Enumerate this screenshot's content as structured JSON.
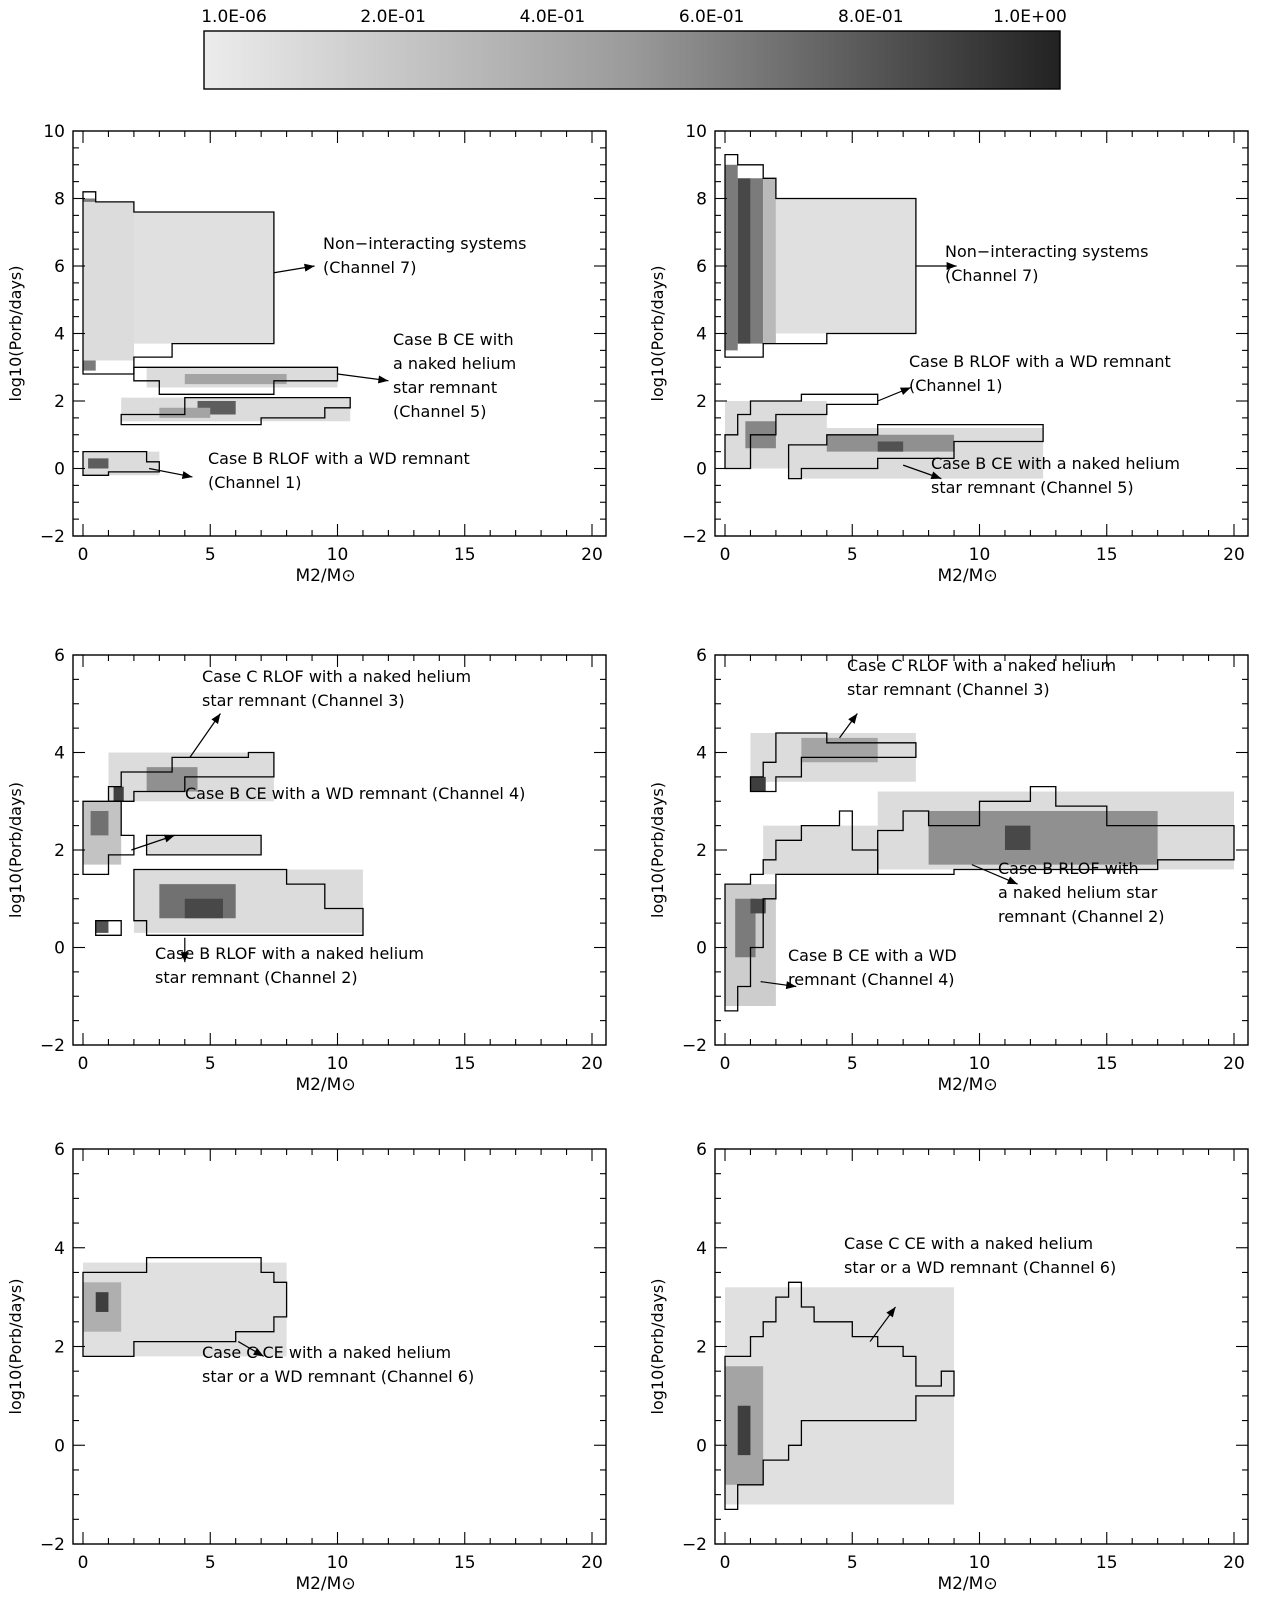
{
  "chart_data": {
    "colorbar": {
      "type": "heatmap-colorbar",
      "tick_labels": [
        "1.0E-06",
        "2.0E-01",
        "4.0E-01",
        "6.0E-01",
        "8.0E-01",
        "1.0E+00"
      ],
      "range": [
        1e-06,
        1.0
      ],
      "colormap": "greyscale: light (low) to dark (high)"
    },
    "panels": [
      {
        "type": "heatmap",
        "xlabel": "M2/M⊙",
        "ylabel": "log10(Porb/days)",
        "xlim": [
          0,
          20
        ],
        "ylim": [
          -2,
          10
        ],
        "xticks": [
          "0",
          "5",
          "10",
          "15",
          "20"
        ],
        "yticks": [
          "−2",
          "0",
          "2",
          "4",
          "6",
          "8",
          "10"
        ],
        "regions": [
          {
            "x": [
              0,
              2
            ],
            "y": [
              2.8,
              8.2
            ],
            "dense_column": [
              0,
              1.2
            ]
          },
          {
            "x": [
              2,
              7.5
            ],
            "y": [
              3.7,
              7.6
            ]
          },
          {
            "x": [
              2,
              10
            ],
            "y": [
              2.2,
              3.0
            ]
          },
          {
            "x": [
              1.5,
              10.5
            ],
            "y": [
              1.3,
              2.1
            ]
          },
          {
            "x": [
              0,
              3
            ],
            "y": [
              -0.2,
              0.6
            ]
          }
        ],
        "annotations": [
          {
            "lines": [
              "Non−interacting systems",
              "(Channel 7)"
            ]
          },
          {
            "lines": [
              "Case B CE with",
              "a naked helium",
              "star remnant",
              "(Channel 5)"
            ]
          },
          {
            "lines": [
              "Case B RLOF with a WD remnant",
              "(Channel 1)"
            ]
          }
        ]
      },
      {
        "type": "heatmap",
        "xlabel": "M2/M⊙",
        "ylabel": "log10(Porb/days)",
        "xlim": [
          0,
          20
        ],
        "ylim": [
          -2,
          10
        ],
        "xticks": [
          "0",
          "5",
          "10",
          "15",
          "20"
        ],
        "yticks": [
          "−2",
          "0",
          "2",
          "4",
          "6",
          "8",
          "10"
        ],
        "regions": [
          {
            "x": [
              0,
              2
            ],
            "y": [
              3.3,
              9.3
            ]
          },
          {
            "x": [
              2,
              7.5
            ],
            "y": [
              4.0,
              8.0
            ]
          },
          {
            "x": [
              0,
              6
            ],
            "y": [
              0,
              2.3
            ]
          },
          {
            "x": [
              2.5,
              12.5
            ],
            "y": [
              -0.3,
              1.3
            ]
          }
        ],
        "annotations": [
          {
            "lines": [
              "Non−interacting systems",
              "(Channel 7)"
            ]
          },
          {
            "lines": [
              "Case B RLOF with a WD remnant",
              "(Channel 1)"
            ]
          },
          {
            "lines": [
              "Case B CE with a naked helium",
              "star remnant (Channel 5)"
            ]
          }
        ]
      },
      {
        "type": "heatmap",
        "xlabel": "M2/M⊙",
        "ylabel": "log10(Porb/days)",
        "xlim": [
          0,
          20
        ],
        "ylim": [
          -2,
          6
        ],
        "xticks": [
          "0",
          "5",
          "10",
          "15",
          "20"
        ],
        "yticks": [
          "−2",
          "0",
          "2",
          "4",
          "6"
        ],
        "regions": [
          {
            "x": [
              1,
              7.5
            ],
            "y": [
              3.0,
              4.0
            ]
          },
          {
            "x": [
              0,
              2
            ],
            "y": [
              1.5,
              3.0
            ]
          },
          {
            "x": [
              2.5,
              7
            ],
            "y": [
              1.9,
              2.3
            ]
          },
          {
            "x": [
              2,
              11
            ],
            "y": [
              0.25,
              1.6
            ]
          },
          {
            "x": [
              0.5,
              1.5
            ],
            "y": [
              0.25,
              0.55
            ]
          }
        ],
        "annotations": [
          {
            "lines": [
              "Case C RLOF with a naked helium",
              "star remnant (Channel 3)"
            ]
          },
          {
            "lines": [
              "Case B CE with a WD remnant (Channel 4)"
            ]
          },
          {
            "lines": [
              "Case B RLOF with a naked helium",
              "star remnant (Channel 2)"
            ]
          }
        ]
      },
      {
        "type": "heatmap",
        "xlabel": "M2/M⊙",
        "ylabel": "log10(Porb/days)",
        "xlim": [
          0,
          20
        ],
        "ylim": [
          -2,
          6
        ],
        "xticks": [
          "0",
          "5",
          "10",
          "15",
          "20"
        ],
        "yticks": [
          "−2",
          "0",
          "2",
          "4",
          "6"
        ],
        "regions": [
          {
            "x": [
              1,
              7.5
            ],
            "y": [
              3.3,
              4.5
            ]
          },
          {
            "x": [
              0,
              2
            ],
            "y": [
              -1.3,
              1.3
            ]
          },
          {
            "x": [
              1,
              6
            ],
            "y": [
              1.3,
              2.8
            ]
          },
          {
            "x": [
              6,
              20
            ],
            "y": [
              1.5,
              3.3
            ]
          }
        ],
        "annotations": [
          {
            "lines": [
              "Case C RLOF with a naked helium",
              "star remnant (Channel 3)"
            ]
          },
          {
            "lines": [
              "Case B RLOF with",
              "a naked helium star",
              "remnant (Channel 2)"
            ]
          },
          {
            "lines": [
              "Case B CE with a WD",
              "remnant (Channel 4)"
            ]
          }
        ]
      },
      {
        "type": "heatmap",
        "xlabel": "M2/M⊙",
        "ylabel": "log10(Porb/days)",
        "xlim": [
          0,
          20
        ],
        "ylim": [
          -2,
          6
        ],
        "xticks": [
          "0",
          "5",
          "10",
          "15",
          "20"
        ],
        "yticks": [
          "−2",
          "0",
          "2",
          "4",
          "6"
        ],
        "regions": [
          {
            "x": [
              0,
              8
            ],
            "y": [
              1.8,
              3.8
            ],
            "dense_point": [
              0.8,
              2.9
            ]
          }
        ],
        "annotations": [
          {
            "lines": [
              "Case C CE with a naked helium",
              "star or a WD remnant (Channel 6)"
            ]
          }
        ]
      },
      {
        "type": "heatmap",
        "xlabel": "M2/M⊙",
        "ylabel": "log10(Porb/days)",
        "xlim": [
          0,
          20
        ],
        "ylim": [
          -2,
          6
        ],
        "xticks": [
          "0",
          "5",
          "10",
          "15",
          "20"
        ],
        "yticks": [
          "−2",
          "0",
          "2",
          "4",
          "6"
        ],
        "regions": [
          {
            "x": [
              0,
              9
            ],
            "y": [
              -1.3,
              3.3
            ],
            "dense_point": [
              0.8,
              0.3
            ]
          }
        ],
        "annotations": [
          {
            "lines": [
              "Case C CE with a naked helium",
              "star or a WD remnant (Channel 6)"
            ]
          }
        ]
      }
    ]
  }
}
